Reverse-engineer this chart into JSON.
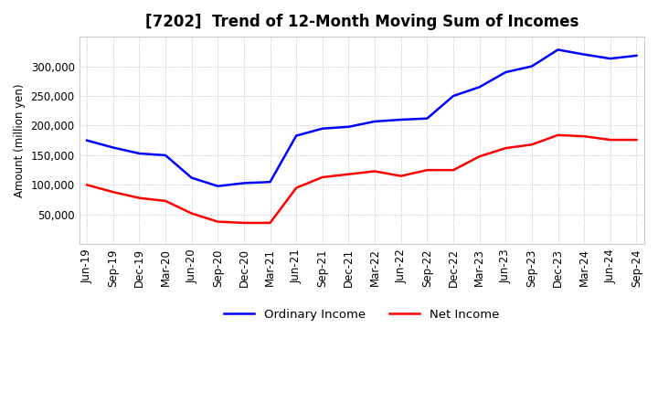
{
  "title": "[7202]  Trend of 12-Month Moving Sum of Incomes",
  "ylabel": "Amount (million yen)",
  "xlabels": [
    "Jun-19",
    "Sep-19",
    "Dec-19",
    "Mar-20",
    "Jun-20",
    "Sep-20",
    "Dec-20",
    "Mar-21",
    "Jun-21",
    "Sep-21",
    "Dec-21",
    "Mar-22",
    "Jun-22",
    "Sep-22",
    "Dec-22",
    "Mar-23",
    "Jun-23",
    "Sep-23",
    "Dec-23",
    "Mar-24",
    "Jun-24",
    "Sep-24"
  ],
  "ordinary_income": [
    175000,
    163000,
    153000,
    150000,
    112000,
    98000,
    103000,
    105000,
    183000,
    195000,
    198000,
    207000,
    210000,
    212000,
    250000,
    265000,
    290000,
    300000,
    328000,
    320000,
    313000,
    318000
  ],
  "net_income": [
    100000,
    88000,
    78000,
    73000,
    52000,
    38000,
    36000,
    36000,
    95000,
    113000,
    118000,
    123000,
    115000,
    125000,
    125000,
    148000,
    162000,
    168000,
    184000,
    182000,
    176000,
    176000
  ],
  "ordinary_color": "#0000ff",
  "net_color": "#ff0000",
  "ylim_min": 0,
  "ylim_max": 350000,
  "yticks": [
    50000,
    100000,
    150000,
    200000,
    250000,
    300000
  ],
  "background_color": "#ffffff",
  "plot_bg_color": "#ffffff",
  "grid_color": "#aaaaaa",
  "title_fontsize": 12,
  "axis_fontsize": 8.5,
  "legend_fontsize": 9.5
}
